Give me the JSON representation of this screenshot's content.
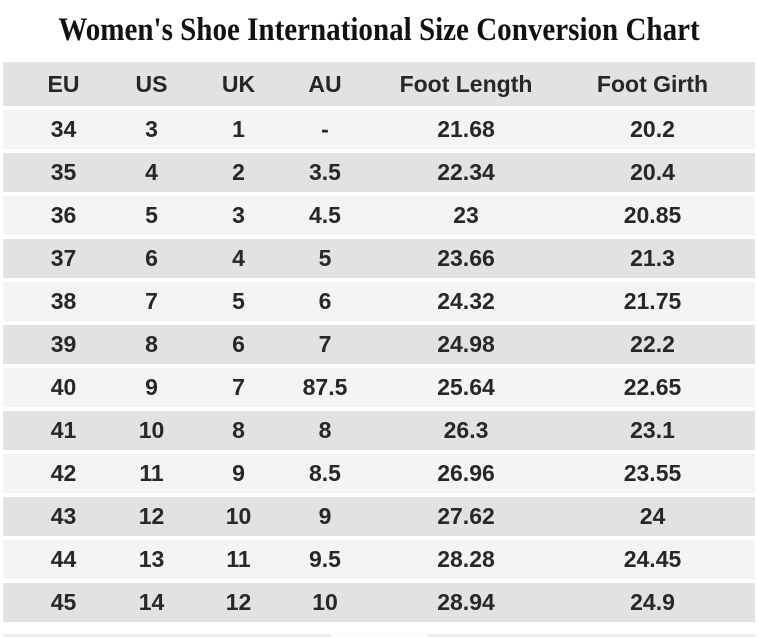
{
  "title": "Women's Shoe International Size Conversion Chart",
  "chart_data": {
    "type": "table",
    "title": "Women's Shoe International Size Conversion Chart",
    "columns": [
      "EU",
      "US",
      "UK",
      "AU",
      "Foot Length",
      "Foot Girth"
    ],
    "rows": [
      [
        "34",
        "3",
        "1",
        "-",
        "21.68",
        "20.2"
      ],
      [
        "35",
        "4",
        "2",
        "3.5",
        "22.34",
        "20.4"
      ],
      [
        "36",
        "5",
        "3",
        "4.5",
        "23",
        "20.85"
      ],
      [
        "37",
        "6",
        "4",
        "5",
        "23.66",
        "21.3"
      ],
      [
        "38",
        "7",
        "5",
        "6",
        "24.32",
        "21.75"
      ],
      [
        "39",
        "8",
        "6",
        "7",
        "24.98",
        "22.2"
      ],
      [
        "40",
        "9",
        "7",
        "87.5",
        "25.64",
        "22.65"
      ],
      [
        "41",
        "10",
        "8",
        "8",
        "26.3",
        "23.1"
      ],
      [
        "42",
        "11",
        "9",
        "8.5",
        "26.96",
        "23.55"
      ],
      [
        "43",
        "12",
        "10",
        "9",
        "27.62",
        "24"
      ],
      [
        "44",
        "13",
        "11",
        "9.5",
        "28.28",
        "24.45"
      ],
      [
        "45",
        "14",
        "12",
        "10",
        "28.94",
        "24.9"
      ]
    ]
  },
  "colors": {
    "page_bg": "#ffffff",
    "header_row_bg": "#e2e2e2",
    "row_light_bg": "#f4f4f4",
    "row_dark_bg": "#e2e2e2",
    "cell_text": "#272727",
    "title_text": "#111111"
  }
}
